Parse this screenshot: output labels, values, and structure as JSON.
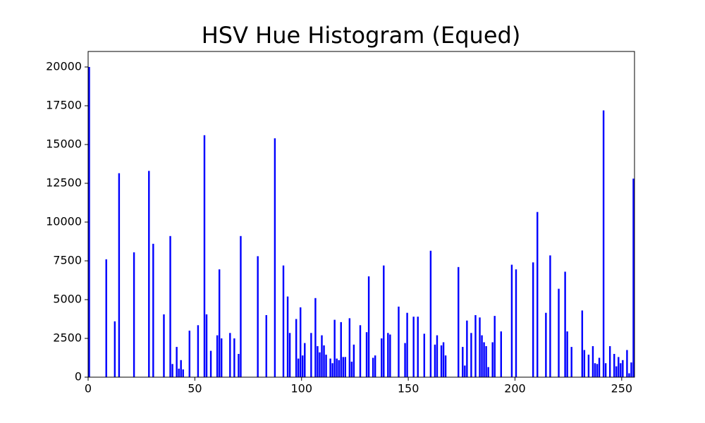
{
  "chart_data": {
    "type": "histogram",
    "title": "HSV Hue Histogram (Equed)",
    "color": "#0000ff",
    "bins": [
      0,
      1,
      2,
      3,
      4,
      5,
      6,
      7,
      8,
      9,
      10,
      11,
      12,
      13,
      14,
      15,
      16,
      17,
      18,
      19,
      20,
      21,
      22,
      23,
      24,
      25,
      26,
      27,
      28,
      29,
      30,
      31,
      32,
      33,
      34,
      35,
      36,
      37,
      38,
      39,
      40,
      41,
      42,
      43,
      44,
      45,
      46,
      47,
      48,
      49,
      50,
      51,
      52,
      53,
      54,
      55,
      56,
      57,
      58,
      59,
      60,
      61,
      62,
      63,
      64,
      65,
      66,
      67,
      68,
      69,
      70,
      71,
      72,
      73,
      74,
      75,
      76,
      77,
      78,
      79,
      80,
      81,
      82,
      83,
      84,
      85,
      86,
      87,
      88,
      89,
      90,
      91,
      92,
      93,
      94,
      95,
      96,
      97,
      98,
      99,
      100,
      101,
      102,
      103,
      104,
      105,
      106,
      107,
      108,
      109,
      110,
      111,
      112,
      113,
      114,
      115,
      116,
      117,
      118,
      119,
      120,
      121,
      122,
      123,
      124,
      125,
      126,
      127,
      128,
      129,
      130,
      131,
      132,
      133,
      134,
      135,
      136,
      137,
      138,
      139,
      140,
      141,
      142,
      143,
      144,
      145,
      146,
      147,
      148,
      149,
      150,
      151,
      152,
      153,
      154,
      155,
      156,
      157,
      158,
      159,
      160,
      161,
      162,
      163,
      164,
      165,
      166,
      167,
      168,
      169,
      170,
      171,
      172,
      173,
      174,
      175,
      176,
      177,
      178,
      179,
      180,
      181,
      182,
      183,
      184,
      185,
      186,
      187,
      188,
      189,
      190,
      191,
      192,
      193,
      194,
      195,
      196,
      197,
      198,
      199,
      200,
      201,
      202,
      203,
      204,
      205,
      206,
      207,
      208,
      209,
      210,
      211,
      212,
      213,
      214,
      215,
      216,
      217,
      218,
      219,
      220,
      221,
      222,
      223,
      224,
      225,
      226,
      227,
      228,
      229,
      230,
      231,
      232,
      233,
      234,
      235,
      236,
      237,
      238,
      239,
      240,
      241,
      242,
      243,
      244,
      245,
      246,
      247,
      248,
      249,
      250,
      251,
      252,
      253,
      254,
      255,
      256
    ],
    "values": [
      20000,
      0,
      0,
      0,
      0,
      0,
      0,
      0,
      7600,
      0,
      0,
      0,
      3600,
      0,
      13150,
      0,
      0,
      0,
      0,
      0,
      0,
      8050,
      0,
      0,
      0,
      0,
      0,
      0,
      13300,
      0,
      8600,
      0,
      0,
      0,
      0,
      4050,
      0,
      0,
      9100,
      850,
      0,
      1950,
      550,
      1100,
      500,
      0,
      0,
      3000,
      0,
      0,
      0,
      3350,
      0,
      0,
      15600,
      4050,
      0,
      1700,
      0,
      0,
      2700,
      6950,
      2500,
      0,
      0,
      0,
      2850,
      0,
      2500,
      0,
      1500,
      9100,
      0,
      0,
      0,
      0,
      0,
      0,
      0,
      7800,
      0,
      0,
      0,
      4000,
      0,
      0,
      0,
      15400,
      0,
      0,
      0,
      7200,
      0,
      5200,
      2850,
      0,
      0,
      3750,
      1200,
      4500,
      1400,
      2200,
      0,
      0,
      2850,
      0,
      5100,
      2000,
      1600,
      2700,
      2050,
      1450,
      0,
      1200,
      900,
      3700,
      1200,
      1100,
      3550,
      1300,
      1300,
      0,
      3800,
      1000,
      2100,
      0,
      0,
      3350,
      0,
      0,
      2900,
      6500,
      0,
      1250,
      1400,
      0,
      0,
      2500,
      7200,
      0,
      2850,
      2750,
      0,
      0,
      0,
      4550,
      0,
      0,
      2200,
      4150,
      0,
      0,
      3900,
      0,
      3900,
      0,
      0,
      2800,
      0,
      0,
      8150,
      0,
      2100,
      2700,
      0,
      2050,
      2250,
      1400,
      0,
      0,
      0,
      0,
      0,
      7100,
      0,
      1950,
      750,
      3650,
      0,
      2850,
      0,
      4000,
      0,
      3850,
      2700,
      2250,
      2000,
      650,
      0,
      2250,
      3950,
      0,
      0,
      2950,
      0,
      0,
      0,
      0,
      7250,
      0,
      6950,
      0,
      0,
      0,
      0,
      0,
      0,
      0,
      7400,
      0,
      10650,
      0,
      0,
      0,
      4150,
      0,
      7850,
      0,
      0,
      0,
      5700,
      0,
      0,
      6800,
      2950,
      0,
      1950,
      0,
      0,
      0,
      0,
      4300,
      1750,
      0,
      1450,
      0,
      2000,
      900,
      850,
      1250,
      0,
      17200,
      900,
      0,
      2000,
      0,
      1500,
      700,
      1300,
      900,
      1100,
      0,
      1750,
      250,
      950,
      12800
    ],
    "xlim": [
      0,
      256
    ],
    "xticks": [
      0,
      50,
      100,
      150,
      200,
      250
    ],
    "ylim": [
      0,
      21000
    ],
    "yticks": [
      0,
      2500,
      5000,
      7500,
      10000,
      12500,
      15000,
      17500,
      20000
    ]
  }
}
